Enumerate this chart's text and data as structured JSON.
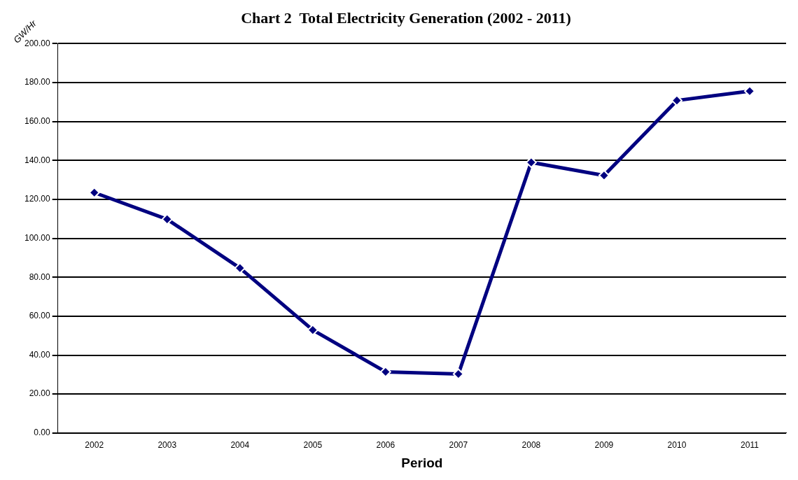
{
  "chart_data": {
    "type": "line",
    "title": "Chart 2  Total Electricity Generation (2002 - 2011)",
    "xlabel": "Period",
    "ylabel": "GW/Hr",
    "categories": [
      "2002",
      "2003",
      "2004",
      "2005",
      "2006",
      "2007",
      "2008",
      "2009",
      "2010",
      "2011"
    ],
    "series": [
      {
        "color": "#000080",
        "values": [
          123.5,
          109.8,
          84.7,
          52.9,
          31.4,
          30.3,
          139,
          132.3,
          170.8,
          175.6
        ]
      }
    ],
    "ylim": [
      0,
      200
    ],
    "yticks": [
      {
        "value": 0,
        "label": "0.00"
      },
      {
        "value": 20,
        "label": "20.00"
      },
      {
        "value": 40,
        "label": "40.00"
      },
      {
        "value": 60,
        "label": "60.00"
      },
      {
        "value": 80,
        "label": "80.00"
      },
      {
        "value": 100,
        "label": "100.00"
      },
      {
        "value": 120,
        "label": "120.00"
      },
      {
        "value": 140,
        "label": "140.00"
      },
      {
        "value": 160,
        "label": "160.00"
      },
      {
        "value": 180,
        "label": "180.00"
      },
      {
        "value": 200,
        "label": "200.00"
      }
    ],
    "grid": "y",
    "legend": false,
    "marker": "diamond",
    "line_style": "solid"
  }
}
